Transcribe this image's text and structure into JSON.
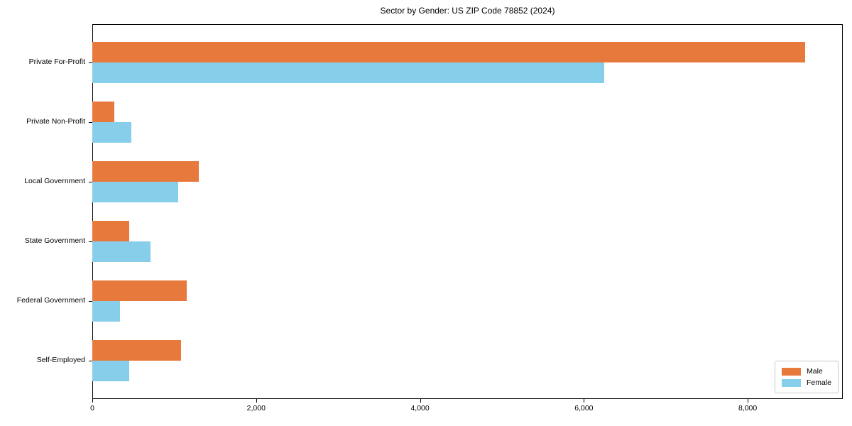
{
  "chart_data": {
    "type": "bar",
    "orientation": "horizontal",
    "title": "Sector by Gender: US ZIP Code 78852 (2024)",
    "categories": [
      "Private For-Profit",
      "Private Non-Profit",
      "Local Government",
      "State Government",
      "Federal Government",
      "Self-Employed"
    ],
    "series": [
      {
        "name": "Male",
        "color": "#e8793d",
        "values": [
          8700,
          270,
          1300,
          450,
          1150,
          1080
        ]
      },
      {
        "name": "Female",
        "color": "#87ceeb",
        "values": [
          6250,
          480,
          1050,
          710,
          340,
          450
        ]
      }
    ],
    "xlabel": "",
    "ylabel": "",
    "xlim": [
      0,
      9160
    ],
    "xticks": [
      {
        "value": 0,
        "label": "0"
      },
      {
        "value": 2000,
        "label": "2,000"
      },
      {
        "value": 4000,
        "label": "4,000"
      },
      {
        "value": 6000,
        "label": "6,000"
      },
      {
        "value": 8000,
        "label": "8,000"
      }
    ],
    "grid": false,
    "legend": {
      "position": "lower right"
    }
  }
}
